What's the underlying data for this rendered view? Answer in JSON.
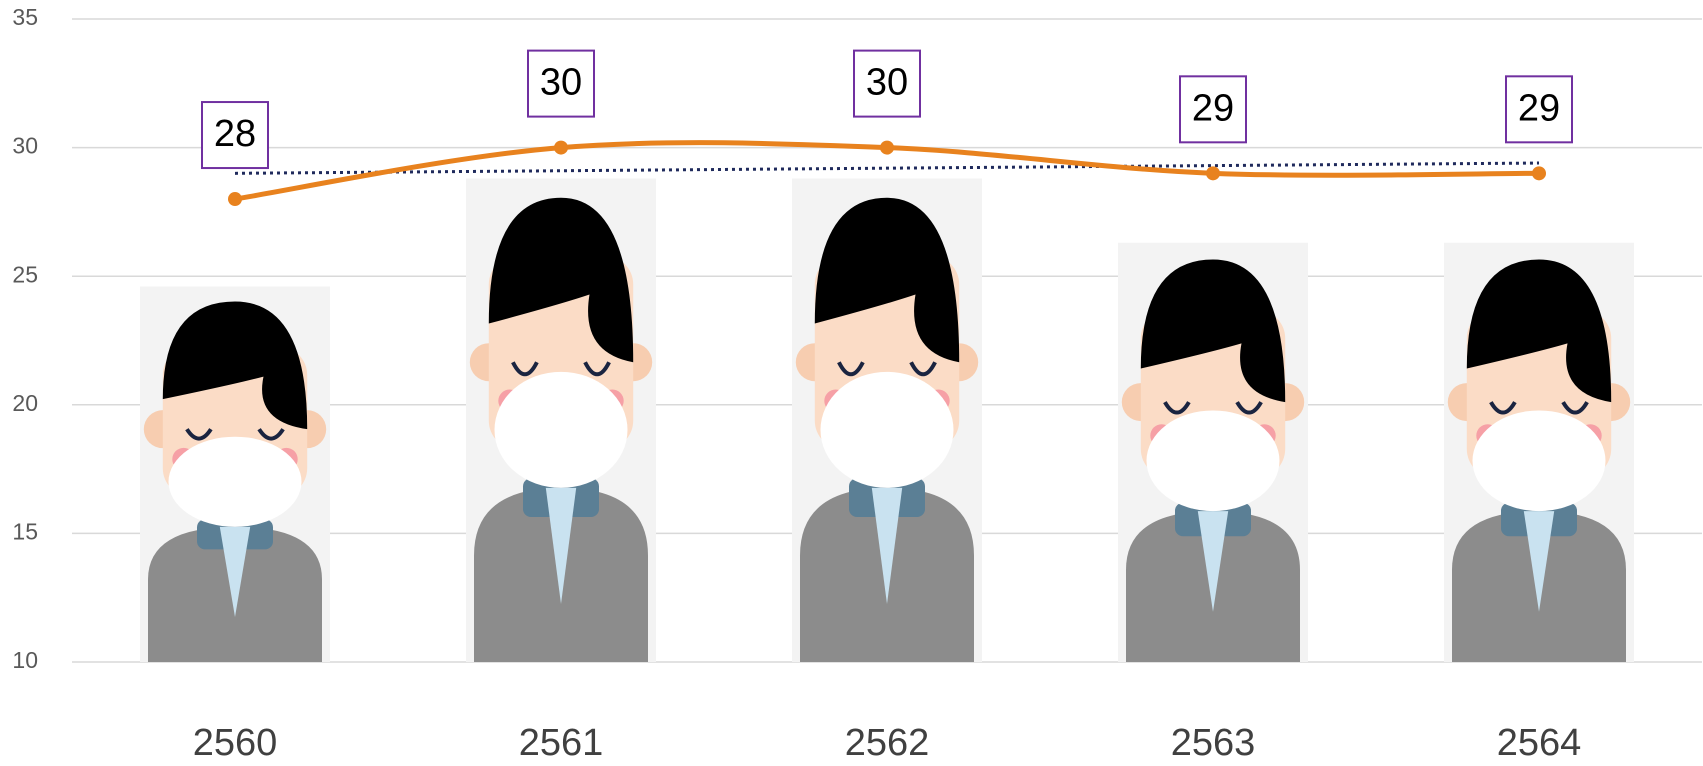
{
  "chart_data": {
    "type": "line",
    "categories": [
      "2560",
      "2561",
      "2562",
      "2563",
      "2564"
    ],
    "series": [
      {
        "type": "pictograph-bar",
        "color": "#f3f3f3",
        "values": [
          24.6,
          28.8,
          28.8,
          26.3,
          26.3
        ]
      },
      {
        "type": "line",
        "color": "#e8821e",
        "values": [
          28,
          30,
          30,
          29,
          29
        ],
        "smooth": true,
        "data_labels": true,
        "trendline": true,
        "trendline_color": "#1f2a5c"
      }
    ],
    "ylim": [
      10,
      35
    ],
    "yticks": [
      10,
      15,
      20,
      25,
      30,
      35
    ],
    "grid": true,
    "label_border_color": "#7030a0"
  }
}
